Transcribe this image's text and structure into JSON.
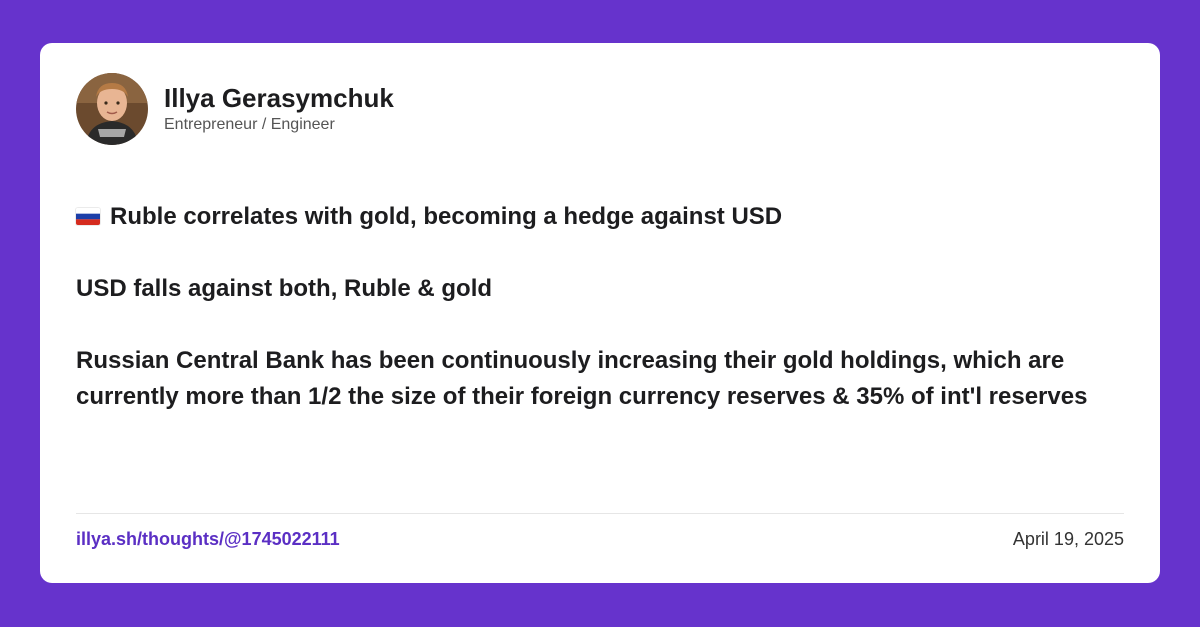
{
  "author": {
    "name": "Illya Gerasymchuk",
    "title": "Entrepreneur / Engineer"
  },
  "post": {
    "flag_icon": "russia-flag-icon",
    "line1": "Ruble correlates with gold, becoming a hedge against USD",
    "line2": "USD falls against both, Ruble & gold",
    "line3": "Russian Central Bank has been continuously increasing their gold holdings, which are currently more than 1/2 the size of their foreign currency reserves & 35% of int'l reserves"
  },
  "footer": {
    "link": "illya.sh/thoughts/@1745022111",
    "date": "April 19, 2025"
  },
  "colors": {
    "background": "#6633cc",
    "card": "#ffffff",
    "link": "#5b2fc4"
  }
}
